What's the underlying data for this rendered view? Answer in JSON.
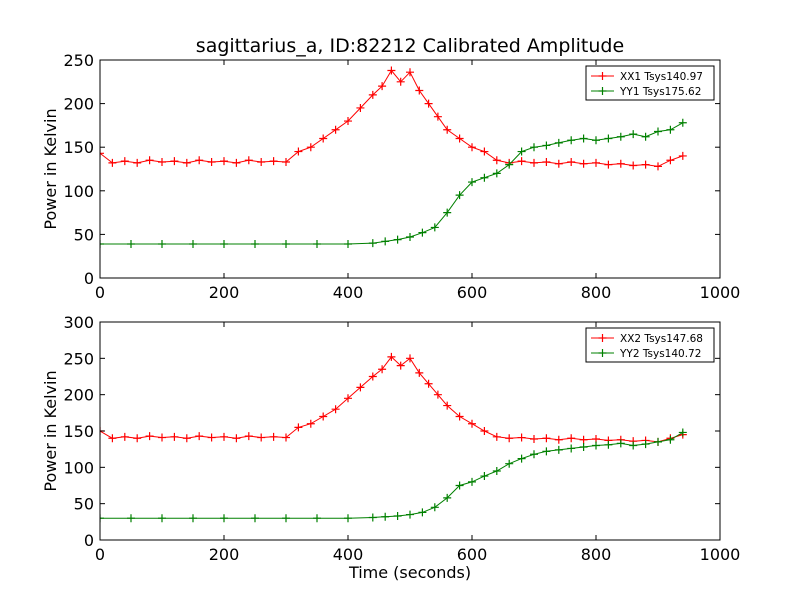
{
  "figure": {
    "title": "sagittarius_a, ID:82212 Calibrated Amplitude"
  },
  "chart_data": [
    {
      "type": "line",
      "marker": "+",
      "ylabel": "Power in Kelvin",
      "xlabel": "",
      "xlim": [
        0,
        1000
      ],
      "ylim": [
        0,
        250
      ],
      "xticks": [
        0,
        200,
        400,
        600,
        800,
        1000
      ],
      "yticks": [
        0,
        50,
        100,
        150,
        200,
        250
      ],
      "grid": false,
      "legend_position": "top-right",
      "series": [
        {
          "name": "XX1 Tsys140.97",
          "color": "#ff0000",
          "x": [
            0,
            20,
            40,
            60,
            80,
            100,
            120,
            140,
            160,
            180,
            200,
            220,
            240,
            260,
            280,
            300,
            320,
            340,
            360,
            380,
            400,
            420,
            440,
            455,
            470,
            485,
            500,
            515,
            530,
            545,
            560,
            580,
            600,
            620,
            640,
            660,
            680,
            700,
            720,
            740,
            760,
            780,
            800,
            820,
            840,
            860,
            880,
            900,
            920,
            940
          ],
          "values": [
            143,
            132,
            134,
            132,
            135,
            133,
            134,
            132,
            135,
            133,
            134,
            132,
            135,
            133,
            134,
            133,
            145,
            150,
            160,
            170,
            180,
            195,
            210,
            220,
            238,
            225,
            236,
            215,
            200,
            185,
            170,
            160,
            150,
            145,
            135,
            132,
            134,
            132,
            133,
            131,
            133,
            131,
            132,
            130,
            131,
            129,
            130,
            128,
            135,
            140
          ]
        },
        {
          "name": "YY1 Tsys175.62",
          "color": "#008000",
          "x": [
            0,
            50,
            100,
            150,
            200,
            250,
            300,
            350,
            400,
            440,
            460,
            480,
            500,
            520,
            540,
            560,
            580,
            600,
            620,
            640,
            660,
            680,
            700,
            720,
            740,
            760,
            780,
            800,
            820,
            840,
            860,
            880,
            900,
            920,
            940
          ],
          "values": [
            39,
            39,
            39,
            39,
            39,
            39,
            39,
            39,
            39,
            40,
            42,
            44,
            47,
            52,
            58,
            75,
            95,
            110,
            115,
            120,
            130,
            145,
            150,
            152,
            155,
            158,
            160,
            158,
            160,
            162,
            165,
            162,
            168,
            170,
            178
          ]
        }
      ]
    },
    {
      "type": "line",
      "marker": "+",
      "ylabel": "Power in Kelvin",
      "xlabel": "Time (seconds)",
      "xlim": [
        0,
        1000
      ],
      "ylim": [
        0,
        300
      ],
      "xticks": [
        0,
        200,
        400,
        600,
        800,
        1000
      ],
      "yticks": [
        0,
        50,
        100,
        150,
        200,
        250,
        300
      ],
      "grid": false,
      "legend_position": "top-right",
      "series": [
        {
          "name": "XX2 Tsys147.68",
          "color": "#ff0000",
          "x": [
            0,
            20,
            40,
            60,
            80,
            100,
            120,
            140,
            160,
            180,
            200,
            220,
            240,
            260,
            280,
            300,
            320,
            340,
            360,
            380,
            400,
            420,
            440,
            455,
            470,
            485,
            500,
            515,
            530,
            545,
            560,
            580,
            600,
            620,
            640,
            660,
            680,
            700,
            720,
            740,
            760,
            780,
            800,
            820,
            840,
            860,
            880,
            900,
            920,
            940
          ],
          "values": [
            150,
            140,
            142,
            140,
            143,
            141,
            142,
            140,
            143,
            141,
            142,
            140,
            143,
            141,
            142,
            141,
            155,
            160,
            170,
            180,
            195,
            210,
            225,
            235,
            252,
            240,
            250,
            230,
            215,
            200,
            185,
            170,
            160,
            150,
            142,
            140,
            141,
            139,
            140,
            138,
            140,
            138,
            139,
            137,
            138,
            136,
            137,
            135,
            140,
            145
          ]
        },
        {
          "name": "YY2 Tsys140.72",
          "color": "#008000",
          "x": [
            0,
            50,
            100,
            150,
            200,
            250,
            300,
            350,
            400,
            440,
            460,
            480,
            500,
            520,
            540,
            560,
            580,
            600,
            620,
            640,
            660,
            680,
            700,
            720,
            740,
            760,
            780,
            800,
            820,
            840,
            860,
            880,
            900,
            920,
            940
          ],
          "values": [
            30,
            30,
            30,
            30,
            30,
            30,
            30,
            30,
            30,
            31,
            32,
            33,
            35,
            38,
            45,
            58,
            75,
            80,
            88,
            95,
            105,
            112,
            118,
            122,
            124,
            126,
            128,
            130,
            131,
            133,
            130,
            132,
            135,
            138,
            148
          ]
        }
      ]
    }
  ]
}
